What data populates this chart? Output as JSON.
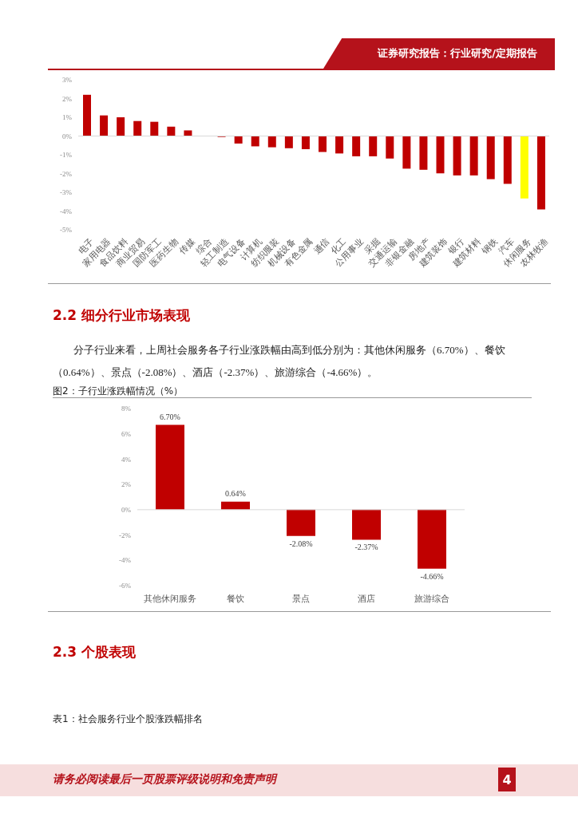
{
  "chart_data": [
    {
      "type": "bar",
      "annotations": [
        "证券研究报告：行业研究/定期报告"
      ],
      "categories": [
        "电子",
        "家用电器",
        "食品饮料",
        "商业贸易",
        "国防军工",
        "医药生物",
        "传媒",
        "综合",
        "轻工制造",
        "电气设备",
        "计算机",
        "纺织服装",
        "机械设备",
        "有色金属",
        "通信",
        "化工",
        "公用事业",
        "采掘",
        "交通运输",
        "非银金融",
        "房地产",
        "建筑装饰",
        "银行",
        "建筑材料",
        "钢铁",
        "汽车",
        "休闲服务",
        "农林牧渔"
      ],
      "values": [
        2.2,
        1.1,
        1.0,
        0.8,
        0.76,
        0.5,
        0.3,
        0,
        -0.05,
        -0.4,
        -0.55,
        -0.6,
        -0.65,
        -0.7,
        -0.85,
        -0.93,
        -1.08,
        -1.08,
        -1.2,
        -1.74,
        -1.8,
        -1.99,
        -2.1,
        -2.1,
        -2.3,
        -2.55,
        -3.33,
        -3.92
      ],
      "colors": [
        "#c00000",
        "#c00000",
        "#c00000",
        "#c00000",
        "#c00000",
        "#c00000",
        "#c00000",
        "#c00000",
        "#c00000",
        "#c00000",
        "#c00000",
        "#c00000",
        "#c00000",
        "#c00000",
        "#c00000",
        "#c00000",
        "#c00000",
        "#c00000",
        "#c00000",
        "#c00000",
        "#c00000",
        "#c00000",
        "#c00000",
        "#c00000",
        "#c00000",
        "#c00000",
        "#ffff00",
        "#c00000"
      ],
      "ylim": [
        -5,
        3
      ],
      "yticks": [
        {
          "value": -5,
          "label": "-5%"
        },
        {
          "value": -4,
          "label": "-4%"
        },
        {
          "value": -3,
          "label": "-3%"
        },
        {
          "value": -2,
          "label": "-2%"
        },
        {
          "value": -1,
          "label": "-1%"
        },
        {
          "value": 0,
          "label": "0%"
        },
        {
          "value": 1,
          "label": "1%"
        },
        {
          "value": 2,
          "label": "2%"
        },
        {
          "value": 3,
          "label": "3%"
        }
      ],
      "ref_lines": [
        {
          "axis": "y",
          "value": 0,
          "color": "#d9d9d9"
        }
      ],
      "grid": false,
      "legend": false
    },
    {
      "type": "bar",
      "title": "图2：子行业涨跌幅情况（%）",
      "annotations": [
        "2.2 细分行业市场表现",
        "分子行业来看，上周社会服务各子行业涨跌幅由高到低分别为：其他休闲服务（6.70%）、餐饮（0.64%）、景点（-2.08%）、酒店（-2.37%）、旅游综合（-4.66%）。",
        "2.3 个股表现",
        "表1：社会服务行业个股涨跌幅排名",
        "请务必阅读最后一页股票评级说明和免责声明",
        "4"
      ],
      "categories": [
        "其他休闲服务",
        "餐饮",
        "景点",
        "酒店",
        "旅游综合"
      ],
      "values": [
        6.7,
        0.64,
        -2.08,
        -2.37,
        -4.66
      ],
      "value_labels": [
        "6.70%",
        "0.64%",
        "-2.08%",
        "-2.37%",
        "-4.66%"
      ],
      "color": "#c00000",
      "ylim": [
        -6,
        8
      ],
      "yticks": [
        {
          "value": -6,
          "label": "-6%"
        },
        {
          "value": -4,
          "label": "-4%"
        },
        {
          "value": -2,
          "label": "-2%"
        },
        {
          "value": 0,
          "label": "0%"
        },
        {
          "value": 2,
          "label": "2%"
        },
        {
          "value": 4,
          "label": "4%"
        },
        {
          "value": 6,
          "label": "6%"
        },
        {
          "value": 8,
          "label": "8%"
        }
      ],
      "ref_lines": [
        {
          "axis": "y",
          "value": 0,
          "color": "#d9d9d9"
        }
      ],
      "grid": false,
      "legend": false
    }
  ]
}
